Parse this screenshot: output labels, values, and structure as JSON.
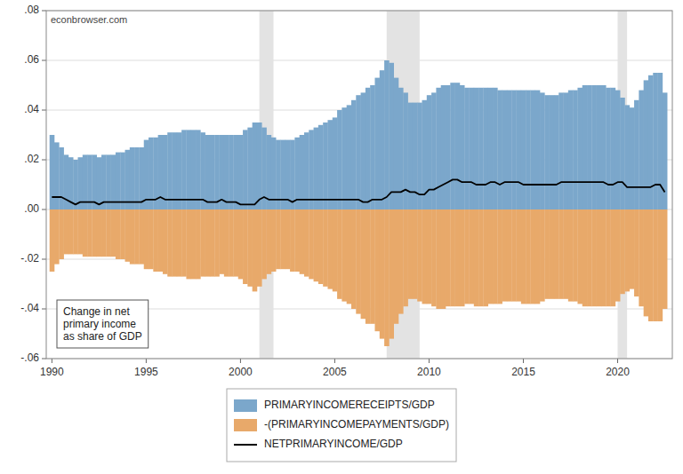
{
  "chart_data": {
    "type": "bar",
    "annotations": [
      "econbrowser.com",
      "Change in net\nprimary income\nas share of GDP"
    ],
    "x": [
      1990.0,
      1990.25,
      1990.5,
      1990.75,
      1991.0,
      1991.25,
      1991.5,
      1991.75,
      1992.0,
      1992.25,
      1992.5,
      1992.75,
      1993.0,
      1993.25,
      1993.5,
      1993.75,
      1994.0,
      1994.25,
      1994.5,
      1994.75,
      1995.0,
      1995.25,
      1995.5,
      1995.75,
      1996.0,
      1996.25,
      1996.5,
      1996.75,
      1997.0,
      1997.25,
      1997.5,
      1997.75,
      1998.0,
      1998.25,
      1998.5,
      1998.75,
      1999.0,
      1999.25,
      1999.5,
      1999.75,
      2000.0,
      2000.25,
      2000.5,
      2000.75,
      2001.0,
      2001.25,
      2001.5,
      2001.75,
      2002.0,
      2002.25,
      2002.5,
      2002.75,
      2003.0,
      2003.25,
      2003.5,
      2003.75,
      2004.0,
      2004.25,
      2004.5,
      2004.75,
      2005.0,
      2005.25,
      2005.5,
      2005.75,
      2006.0,
      2006.25,
      2006.5,
      2006.75,
      2007.0,
      2007.25,
      2007.5,
      2007.75,
      2008.0,
      2008.25,
      2008.5,
      2008.75,
      2009.0,
      2009.25,
      2009.5,
      2009.75,
      2010.0,
      2010.25,
      2010.5,
      2010.75,
      2011.0,
      2011.25,
      2011.5,
      2011.75,
      2012.0,
      2012.25,
      2012.5,
      2012.75,
      2013.0,
      2013.25,
      2013.5,
      2013.75,
      2014.0,
      2014.25,
      2014.5,
      2014.75,
      2015.0,
      2015.25,
      2015.5,
      2015.75,
      2016.0,
      2016.25,
      2016.5,
      2016.75,
      2017.0,
      2017.25,
      2017.5,
      2017.75,
      2018.0,
      2018.25,
      2018.5,
      2018.75,
      2019.0,
      2019.25,
      2019.5,
      2019.75,
      2020.0,
      2020.25,
      2020.5,
      2020.75,
      2021.0,
      2021.25,
      2021.5,
      2021.75,
      2022.0,
      2022.25,
      2022.5
    ],
    "series": [
      {
        "name": "PRIMARYINCOMERECEIPTS/GDP",
        "type": "bar",
        "color": "#7ba7cb",
        "values": [
          0.03,
          0.027,
          0.025,
          0.022,
          0.021,
          0.02,
          0.021,
          0.022,
          0.022,
          0.022,
          0.021,
          0.022,
          0.022,
          0.022,
          0.023,
          0.023,
          0.024,
          0.025,
          0.025,
          0.025,
          0.028,
          0.029,
          0.029,
          0.03,
          0.03,
          0.031,
          0.031,
          0.031,
          0.032,
          0.032,
          0.032,
          0.032,
          0.031,
          0.03,
          0.03,
          0.03,
          0.03,
          0.03,
          0.03,
          0.03,
          0.03,
          0.032,
          0.033,
          0.035,
          0.035,
          0.033,
          0.03,
          0.029,
          0.028,
          0.028,
          0.028,
          0.028,
          0.029,
          0.03,
          0.031,
          0.032,
          0.033,
          0.034,
          0.035,
          0.036,
          0.037,
          0.04,
          0.041,
          0.042,
          0.044,
          0.046,
          0.047,
          0.049,
          0.05,
          0.053,
          0.056,
          0.06,
          0.059,
          0.053,
          0.049,
          0.047,
          0.043,
          0.043,
          0.043,
          0.044,
          0.046,
          0.047,
          0.049,
          0.05,
          0.05,
          0.051,
          0.051,
          0.05,
          0.049,
          0.049,
          0.049,
          0.049,
          0.049,
          0.049,
          0.049,
          0.048,
          0.048,
          0.048,
          0.048,
          0.048,
          0.048,
          0.048,
          0.048,
          0.048,
          0.047,
          0.046,
          0.046,
          0.046,
          0.047,
          0.047,
          0.048,
          0.048,
          0.049,
          0.05,
          0.05,
          0.05,
          0.05,
          0.05,
          0.049,
          0.049,
          0.048,
          0.045,
          0.042,
          0.041,
          0.044,
          0.048,
          0.052,
          0.054,
          0.055,
          0.055,
          0.047
        ]
      },
      {
        "name": "-(PRIMARYINCOMEPAYMENTS/GDP)",
        "type": "bar",
        "color": "#e8a96a",
        "values": [
          -0.025,
          -0.022,
          -0.02,
          -0.018,
          -0.018,
          -0.018,
          -0.018,
          -0.019,
          -0.019,
          -0.019,
          -0.019,
          -0.019,
          -0.019,
          -0.019,
          -0.02,
          -0.02,
          -0.021,
          -0.022,
          -0.022,
          -0.022,
          -0.024,
          -0.024,
          -0.025,
          -0.025,
          -0.026,
          -0.027,
          -0.027,
          -0.027,
          -0.027,
          -0.028,
          -0.028,
          -0.028,
          -0.027,
          -0.027,
          -0.027,
          -0.027,
          -0.026,
          -0.027,
          -0.027,
          -0.027,
          -0.028,
          -0.03,
          -0.031,
          -0.033,
          -0.031,
          -0.028,
          -0.026,
          -0.025,
          -0.024,
          -0.024,
          -0.024,
          -0.025,
          -0.025,
          -0.026,
          -0.027,
          -0.028,
          -0.029,
          -0.03,
          -0.031,
          -0.032,
          -0.033,
          -0.036,
          -0.037,
          -0.038,
          -0.04,
          -0.042,
          -0.044,
          -0.046,
          -0.046,
          -0.049,
          -0.052,
          -0.055,
          -0.052,
          -0.046,
          -0.042,
          -0.039,
          -0.036,
          -0.036,
          -0.037,
          -0.038,
          -0.038,
          -0.039,
          -0.04,
          -0.04,
          -0.039,
          -0.039,
          -0.039,
          -0.039,
          -0.038,
          -0.038,
          -0.039,
          -0.039,
          -0.039,
          -0.038,
          -0.038,
          -0.038,
          -0.037,
          -0.037,
          -0.037,
          -0.037,
          -0.038,
          -0.038,
          -0.038,
          -0.038,
          -0.037,
          -0.036,
          -0.036,
          -0.036,
          -0.036,
          -0.036,
          -0.037,
          -0.037,
          -0.038,
          -0.039,
          -0.039,
          -0.039,
          -0.039,
          -0.039,
          -0.039,
          -0.039,
          -0.037,
          -0.034,
          -0.033,
          -0.032,
          -0.035,
          -0.039,
          -0.043,
          -0.045,
          -0.045,
          -0.045,
          -0.04
        ]
      },
      {
        "name": "NETPRIMARYINCOME/GDP",
        "type": "line",
        "color": "#000000",
        "values": [
          0.005,
          0.005,
          0.005,
          0.004,
          0.003,
          0.002,
          0.003,
          0.003,
          0.003,
          0.003,
          0.002,
          0.003,
          0.003,
          0.003,
          0.003,
          0.003,
          0.003,
          0.003,
          0.003,
          0.003,
          0.004,
          0.004,
          0.004,
          0.005,
          0.004,
          0.004,
          0.004,
          0.004,
          0.004,
          0.004,
          0.004,
          0.004,
          0.004,
          0.003,
          0.003,
          0.003,
          0.004,
          0.003,
          0.003,
          0.003,
          0.002,
          0.002,
          0.002,
          0.002,
          0.004,
          0.005,
          0.004,
          0.004,
          0.004,
          0.004,
          0.004,
          0.003,
          0.004,
          0.004,
          0.004,
          0.004,
          0.004,
          0.004,
          0.004,
          0.004,
          0.004,
          0.004,
          0.004,
          0.004,
          0.004,
          0.004,
          0.003,
          0.003,
          0.004,
          0.004,
          0.004,
          0.005,
          0.007,
          0.007,
          0.007,
          0.008,
          0.007,
          0.007,
          0.006,
          0.006,
          0.008,
          0.008,
          0.009,
          0.01,
          0.011,
          0.012,
          0.012,
          0.011,
          0.011,
          0.011,
          0.01,
          0.01,
          0.01,
          0.011,
          0.011,
          0.01,
          0.011,
          0.011,
          0.011,
          0.011,
          0.01,
          0.01,
          0.01,
          0.01,
          0.01,
          0.01,
          0.01,
          0.01,
          0.011,
          0.011,
          0.011,
          0.011,
          0.011,
          0.011,
          0.011,
          0.011,
          0.011,
          0.011,
          0.01,
          0.01,
          0.011,
          0.011,
          0.009,
          0.009,
          0.009,
          0.009,
          0.009,
          0.009,
          0.01,
          0.01,
          0.007
        ]
      }
    ],
    "recession_bands": [
      [
        2001.0,
        2001.75
      ],
      [
        2007.75,
        2009.5
      ],
      [
        2020.0,
        2020.5
      ]
    ],
    "xlim": [
      1989.7,
      2022.9
    ],
    "xticks": [
      1990,
      1995,
      2000,
      2005,
      2010,
      2015,
      2020
    ],
    "ylim": [
      -0.06,
      0.08
    ],
    "yticks": [
      {
        "value": -0.06,
        "label": "-.06"
      },
      {
        "value": -0.04,
        "label": "-.04"
      },
      {
        "value": -0.02,
        "label": "-.02"
      },
      {
        "value": 0.0,
        "label": ".00"
      },
      {
        "value": 0.02,
        "label": ".02"
      },
      {
        "value": 0.04,
        "label": ".04"
      },
      {
        "value": 0.06,
        "label": ".06"
      },
      {
        "value": 0.08,
        "label": ".08"
      }
    ],
    "grid": true,
    "legend": "bottom"
  }
}
